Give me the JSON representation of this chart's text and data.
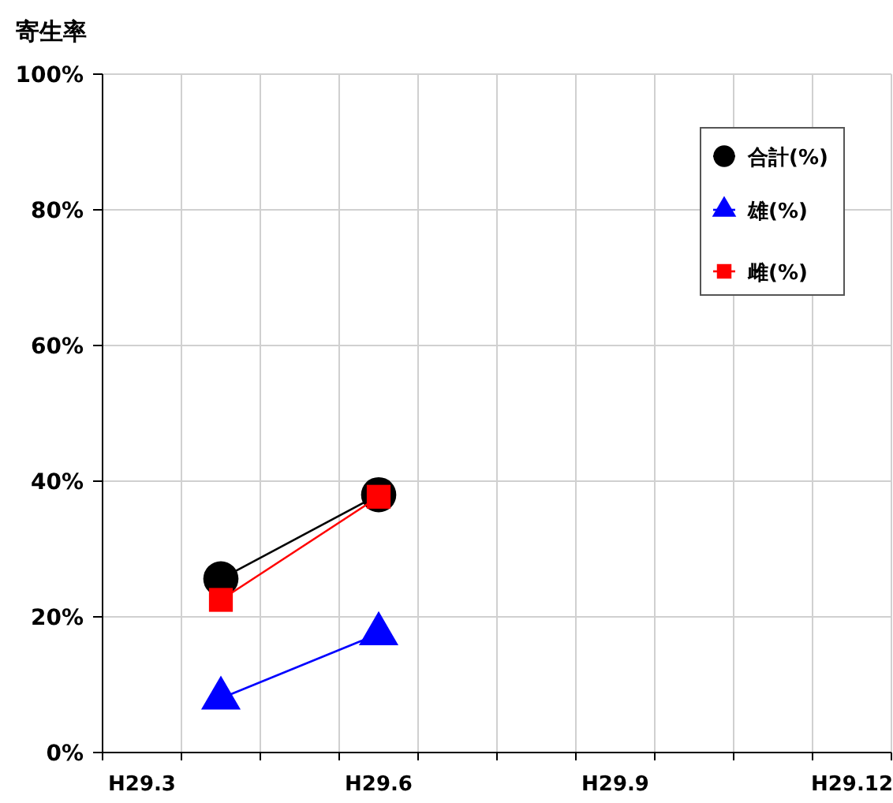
{
  "chart_data": {
    "type": "line",
    "ylabel": "寄生率",
    "categories": [
      "H29.3",
      null,
      null,
      "H29.6",
      null,
      null,
      "H29.9",
      null,
      null,
      "H29.12"
    ],
    "series": [
      {
        "name": "合計(%)",
        "color": "#000000",
        "marker": "circle",
        "values": [
          null,
          25.6,
          null,
          38,
          null,
          null,
          null,
          null,
          null,
          null
        ]
      },
      {
        "name": "雄(%)",
        "color": "#0000ff",
        "marker": "triangle",
        "values": [
          null,
          8,
          null,
          17.5,
          null,
          null,
          null,
          null,
          null,
          null
        ]
      },
      {
        "name": "雌(%)",
        "color": "#ff0000",
        "marker": "square",
        "values": [
          null,
          22.5,
          null,
          37.7,
          null,
          null,
          null,
          null,
          null,
          null
        ]
      }
    ],
    "ylim": [
      0,
      100
    ],
    "yticks": [
      {
        "value": 0,
        "label": "0%"
      },
      {
        "value": 20,
        "label": "20%"
      },
      {
        "value": 40,
        "label": "40%"
      },
      {
        "value": 60,
        "label": "60%"
      },
      {
        "value": 80,
        "label": "80%"
      },
      {
        "value": 100,
        "label": "100%"
      }
    ],
    "grid": true,
    "legend": "top right",
    "line_style": "solid"
  }
}
